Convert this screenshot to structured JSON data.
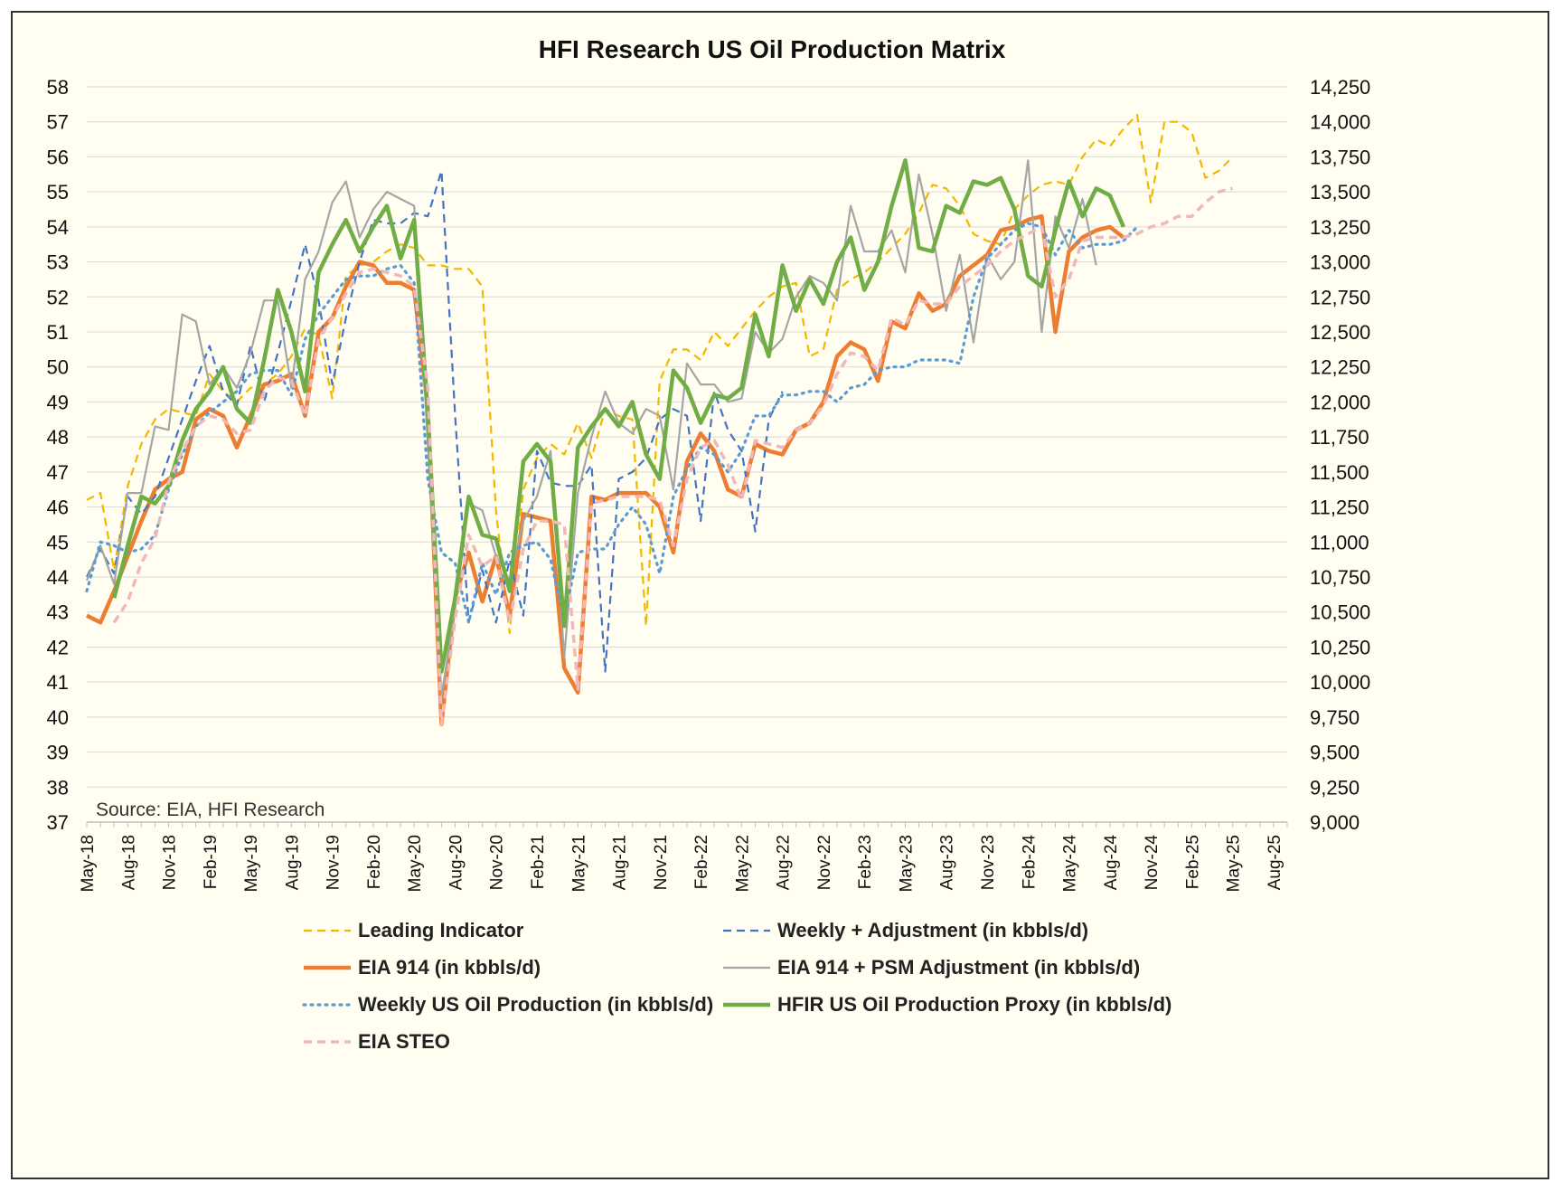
{
  "chart_data": {
    "type": "line",
    "title": "HFI Research US Oil Production Matrix",
    "source": "Source: EIA, HFI Research",
    "left_axis": {
      "min": 37,
      "max": 58,
      "step": 1,
      "ticks": [
        "37",
        "38",
        "39",
        "40",
        "41",
        "42",
        "43",
        "44",
        "45",
        "46",
        "47",
        "48",
        "49",
        "50",
        "51",
        "52",
        "53",
        "54",
        "55",
        "56",
        "57",
        "58"
      ]
    },
    "right_axis": {
      "min": 9000,
      "max": 14250,
      "step": 250,
      "ticks": [
        "9,000",
        "9,250",
        "9,500",
        "9,750",
        "10,000",
        "10,250",
        "10,500",
        "10,750",
        "11,000",
        "11,250",
        "11,500",
        "11,750",
        "12,000",
        "12,250",
        "12,500",
        "12,750",
        "13,000",
        "13,250",
        "13,500",
        "13,750",
        "14,000",
        "14,250"
      ]
    },
    "x_tick_labels": [
      "May-18",
      "Aug-18",
      "Nov-18",
      "Feb-19",
      "May-19",
      "Aug-19",
      "Nov-19",
      "Feb-20",
      "May-20",
      "Aug-20",
      "Nov-20",
      "Feb-21",
      "May-21",
      "Aug-21",
      "Nov-21",
      "Feb-22",
      "May-22",
      "Aug-22",
      "Nov-22",
      "Feb-23",
      "May-23",
      "Aug-23",
      "Nov-23",
      "Feb-24",
      "May-24",
      "Aug-24",
      "Nov-24",
      "Feb-25",
      "May-25",
      "Aug-25"
    ],
    "x_start": "May-18",
    "months_total": 88,
    "legend_layout": "bottom, two columns",
    "series": [
      {
        "name": "Leading Indicator",
        "axis": "left",
        "color": "#f2b800",
        "style": "dashed",
        "width": 2.2,
        "values": [
          46.2,
          46.4,
          44.2,
          46.6,
          47.8,
          48.5,
          48.8,
          48.7,
          48.6,
          49.8,
          49.3,
          49.0,
          49.4,
          49.5,
          49.8,
          50.3,
          51.1,
          50.9,
          49.1,
          52.6,
          52.9,
          53.0,
          53.3,
          53.5,
          53.4,
          52.9,
          52.9,
          52.8,
          52.8,
          52.3,
          45.9,
          42.4,
          46.5,
          47.4,
          47.8,
          47.5,
          48.4,
          47.4,
          48.8,
          48.6,
          48.5,
          42.6,
          49.6,
          50.5,
          50.5,
          50.2,
          51.0,
          50.6,
          51.1,
          51.6,
          52.0,
          52.3,
          52.4,
          50.3,
          50.5,
          52.2,
          52.5,
          52.7,
          53.0,
          53.4,
          53.8,
          54.4,
          55.2,
          55.1,
          54.6,
          53.8,
          53.6,
          53.5,
          54.5,
          54.9,
          55.2,
          55.3,
          55.2,
          56.0,
          56.5,
          56.3,
          56.8,
          57.2,
          54.7,
          57.0,
          57.0,
          56.7,
          55.4,
          55.6,
          56.0
        ]
      },
      {
        "name": "EIA 914 (in kbbls/d)",
        "axis": "left",
        "color": "#ed7d31",
        "style": "solid",
        "width": 4.5,
        "values": [
          42.9,
          42.7,
          43.6,
          44.6,
          45.6,
          46.5,
          46.8,
          47.0,
          48.5,
          48.8,
          48.6,
          47.7,
          48.6,
          49.5,
          49.6,
          49.8,
          48.6,
          51.0,
          51.4,
          52.3,
          53.0,
          52.9,
          52.4,
          52.4,
          52.2,
          48.8,
          39.8,
          43.4,
          44.7,
          43.3,
          44.6,
          42.9,
          45.8,
          45.7,
          45.6,
          41.4,
          40.7,
          46.3,
          46.2,
          46.4,
          46.4,
          46.4,
          46.0,
          44.7,
          47.3,
          48.1,
          47.6,
          46.5,
          46.3,
          47.8,
          47.6,
          47.5,
          48.2,
          48.4,
          49.0,
          50.3,
          50.7,
          50.5,
          49.6,
          51.3,
          51.1,
          52.1,
          51.6,
          51.8,
          52.6,
          52.9,
          53.2,
          53.9,
          54.0,
          54.2,
          54.3,
          51.0,
          53.3,
          53.7,
          53.9,
          54.0,
          53.7
        ],
        "x_offset": 0
      },
      {
        "name": "Weekly + Adjustment (in kbbls/d)",
        "axis": "left",
        "color": "#4472c4",
        "style": "dashed",
        "width": 2.2,
        "values": [
          44.0,
          44.8,
          44.1,
          46.3,
          45.8,
          46.3,
          47.4,
          48.5,
          49.6,
          50.6,
          49.3,
          48.9,
          50.6,
          49.0,
          50.4,
          51.9,
          53.5,
          51.9,
          49.5,
          51.4,
          53.0,
          54.2,
          54.1,
          54.1,
          54.4,
          54.3,
          55.6,
          48.6,
          42.7,
          44.2,
          42.7,
          44.5,
          42.9,
          47.6,
          46.7,
          46.6,
          46.6,
          47.2,
          41.3,
          46.8,
          47.0,
          47.4,
          48.5,
          48.8,
          48.6,
          45.6,
          49.3,
          48.2,
          47.6,
          45.3,
          48.5,
          49.3
        ]
      },
      {
        "name": "EIA 914 + PSM Adjustment (in kbbls/d)",
        "axis": "left",
        "color": "#a5a5a5",
        "style": "solid",
        "width": 2.2,
        "values": [
          43.9,
          44.9,
          43.8,
          46.4,
          46.4,
          48.3,
          48.2,
          51.5,
          51.3,
          49.5,
          50.0,
          49.4,
          50.4,
          51.9,
          51.9,
          49.4,
          52.5,
          53.3,
          54.7,
          55.3,
          53.7,
          54.5,
          55.0,
          54.8,
          54.6,
          47.8,
          40.6,
          43.1,
          46.1,
          45.9,
          44.6,
          43.9,
          45.6,
          46.3,
          47.6,
          41.7,
          46.4,
          48.0,
          49.3,
          48.4,
          48.1,
          48.8,
          48.6,
          46.5,
          50.1,
          49.5,
          49.5,
          49.0,
          49.1,
          51.0,
          50.4,
          50.8,
          52.0,
          52.6,
          52.4,
          51.9,
          54.6,
          53.3,
          53.3,
          53.9,
          52.7,
          55.5,
          53.8,
          51.6,
          53.2,
          50.7,
          53.2,
          52.5,
          53.0,
          55.9,
          51.0,
          54.3,
          53.4,
          54.8,
          52.9
        ]
      },
      {
        "name": "Weekly US Oil Production (in kbbls/d)",
        "axis": "left",
        "color": "#5b9bd5",
        "style": "dotted",
        "width": 3.2,
        "values": [
          43.6,
          45.0,
          44.9,
          44.7,
          44.8,
          45.2,
          46.5,
          47.5,
          48.3,
          48.7,
          49.0,
          49.3,
          49.8,
          49.9,
          49.9,
          49.2,
          50.8,
          51.5,
          52.0,
          52.5,
          52.6,
          52.6,
          52.8,
          52.9,
          52.4,
          46.8,
          44.7,
          44.4,
          42.7,
          44.4,
          43.5,
          44.7,
          44.9,
          45.0,
          44.5,
          42.8,
          44.7,
          44.8,
          44.8,
          45.5,
          46.0,
          45.5,
          44.1,
          46.3,
          47.1,
          47.7,
          47.5,
          47.0,
          47.6,
          48.6,
          48.6,
          49.2,
          49.2,
          49.3,
          49.3,
          49.0,
          49.4,
          49.5,
          49.9,
          50.0,
          50.0,
          50.2,
          50.2,
          50.2,
          50.1,
          52.0,
          53.1,
          53.5,
          53.9,
          54.1,
          54.0,
          53.2,
          53.9,
          53.4,
          53.5,
          53.5,
          53.6,
          54.0
        ]
      },
      {
        "name": "HFIR US Oil Production Proxy (in kbbls/d)",
        "axis": "left",
        "color": "#70ad47",
        "style": "solid",
        "width": 4.5,
        "values": [
          null,
          null,
          43.4,
          44.9,
          46.3,
          46.1,
          46.6,
          47.9,
          48.8,
          49.3,
          50.0,
          48.8,
          48.4,
          50.2,
          52.2,
          51.0,
          49.3,
          52.7,
          53.5,
          54.2,
          53.3,
          54.0,
          54.6,
          53.1,
          54.2,
          48.7,
          41.3,
          43.4,
          46.3,
          45.2,
          45.1,
          43.6,
          47.3,
          47.8,
          47.3,
          42.6,
          47.7,
          48.3,
          48.8,
          48.3,
          49.0,
          47.5,
          46.8,
          49.9,
          49.4,
          48.4,
          49.2,
          49.1,
          49.4,
          51.5,
          50.3,
          52.9,
          51.6,
          52.5,
          51.8,
          53.0,
          53.7,
          52.2,
          53.0,
          54.6,
          55.9,
          53.4,
          53.3,
          54.6,
          54.4,
          55.3,
          55.2,
          55.4,
          54.5,
          52.6,
          52.3,
          53.9,
          55.3,
          54.3,
          55.1,
          54.9,
          54.0
        ]
      },
      {
        "name": "EIA STEO",
        "axis": "left",
        "color": "#f2b8b8",
        "style": "dashed",
        "width": 3.5,
        "values": [
          null,
          null,
          42.7,
          43.3,
          44.4,
          45.1,
          46.7,
          47.6,
          48.3,
          48.6,
          48.5,
          48.1,
          48.2,
          49.3,
          49.7,
          49.6,
          48.6,
          50.8,
          51.4,
          52.1,
          52.7,
          52.8,
          52.7,
          52.6,
          52.3,
          49.4,
          39.8,
          42.8,
          45.2,
          44.3,
          44.6,
          42.7,
          44.8,
          45.6,
          45.6,
          45.5,
          40.8,
          46.1,
          46.2,
          46.3,
          46.3,
          46.3,
          46.2,
          44.9,
          46.8,
          47.7,
          47.9,
          47.2,
          46.2,
          47.9,
          47.8,
          47.7,
          48.2,
          48.4,
          48.9,
          49.8,
          50.4,
          50.3,
          49.9,
          51.4,
          51.2,
          51.9,
          51.8,
          51.8,
          52.3,
          52.6,
          52.9,
          53.3,
          53.6,
          53.8,
          54.0,
          52.0,
          52.5,
          53.6,
          53.7,
          53.7,
          53.7,
          53.8,
          54.0,
          54.1,
          54.3,
          54.3,
          54.7,
          55.0,
          55.1
        ]
      }
    ]
  }
}
